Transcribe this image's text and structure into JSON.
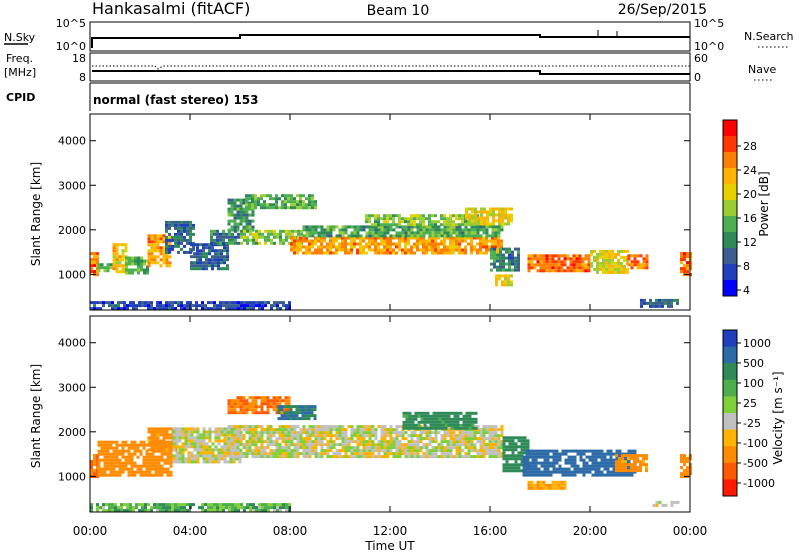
{
  "header": {
    "station": "Hankasalmi (fitACF)",
    "beam": "Beam 10",
    "date": "26/Sep/2015"
  },
  "panels": {
    "noise": {
      "left_label": "N.Sky",
      "left_ticks": [
        "10^5",
        "10^0"
      ],
      "right_ticks": [
        "10^5",
        "10^0"
      ],
      "right_label": "N.Search"
    },
    "freq": {
      "left_label_1": "Freq.",
      "left_label_2": "[MHz]",
      "left_ticks": [
        "18",
        "8"
      ],
      "right_ticks": [
        "60",
        "0"
      ],
      "right_label": "Nave"
    },
    "cpid": {
      "label": "CPID",
      "value": "normal (fast stereo) 153"
    }
  },
  "axes": {
    "x_label": "Time UT",
    "x_ticks": [
      "00:00",
      "04:00",
      "08:00",
      "12:00",
      "16:00",
      "20:00",
      "00:00"
    ],
    "y_label": "Slant Range [km]",
    "y_ticks": [
      "4000",
      "3000",
      "2000",
      "1000"
    ]
  },
  "colorbars": {
    "power": {
      "label": "Power [dB]",
      "ticks": [
        "28",
        "24",
        "20",
        "16",
        "12",
        "8",
        "4"
      ],
      "colors": [
        "#ff0000",
        "#ff3a00",
        "#ff7f00",
        "#ffb300",
        "#e8d000",
        "#9acd32",
        "#4caf50",
        "#2e8b57",
        "#3a5f8f",
        "#1f3fbf",
        "#0000ff"
      ]
    },
    "velocity": {
      "label": "Velocity [m s⁻¹]",
      "ticks": [
        "1000",
        "500",
        "100",
        "25",
        "-25",
        "-100",
        "-500",
        "-1000"
      ],
      "colors": [
        "#1f3fbf",
        "#2c6aa8",
        "#2e8b57",
        "#4cae4c",
        "#7ecf3a",
        "#c0c0c0",
        "#ffb300",
        "#ff8c00",
        "#ff5a00",
        "#ff1a00"
      ]
    }
  },
  "chart_data": [
    {
      "type": "heatmap",
      "title": "Power",
      "xlabel": "Time UT",
      "ylabel": "Slant Range [km]",
      "xlim": [
        0,
        24
      ],
      "ylim": [
        200,
        4600
      ],
      "colorbar": "Power [dB]",
      "colorbar_range": [
        2,
        32
      ],
      "bands": [
        {
          "t0": 0.0,
          "t1": 0.3,
          "r0": 1000,
          "r1": 1500,
          "db": 27
        },
        {
          "t0": 0.3,
          "t1": 0.9,
          "r0": 1050,
          "r1": 1250,
          "db": 14
        },
        {
          "t0": 0.9,
          "t1": 1.4,
          "r0": 1050,
          "r1": 1700,
          "db": 22
        },
        {
          "t0": 1.4,
          "t1": 2.3,
          "r0": 1050,
          "r1": 1400,
          "db": 14
        },
        {
          "t0": 2.3,
          "t1": 3.2,
          "r0": 1200,
          "r1": 1900,
          "db": 24
        },
        {
          "t0": 3.0,
          "t1": 4.2,
          "r0": 1500,
          "r1": 2200,
          "db": 8
        },
        {
          "t0": 4.0,
          "t1": 5.5,
          "r0": 1100,
          "r1": 1700,
          "db": 8
        },
        {
          "t0": 4.8,
          "t1": 6.0,
          "r0": 1700,
          "r1": 2000,
          "db": 10
        },
        {
          "t0": 5.5,
          "t1": 6.5,
          "r0": 2000,
          "r1": 2700,
          "db": 12
        },
        {
          "t0": 6.0,
          "t1": 8.5,
          "r0": 1700,
          "r1": 2000,
          "db": 16
        },
        {
          "t0": 6.2,
          "t1": 9.0,
          "r0": 2500,
          "r1": 2800,
          "db": 14
        },
        {
          "t0": 8.0,
          "t1": 16.5,
          "r0": 1450,
          "r1": 1850,
          "db": 24
        },
        {
          "t0": 8.5,
          "t1": 16.5,
          "r0": 1850,
          "r1": 2100,
          "db": 13
        },
        {
          "t0": 11.0,
          "t1": 15.5,
          "r0": 2100,
          "r1": 2350,
          "db": 16
        },
        {
          "t0": 15.0,
          "t1": 16.8,
          "r0": 2100,
          "r1": 2500,
          "db": 20
        },
        {
          "t0": 16.0,
          "t1": 17.2,
          "r0": 1100,
          "r1": 1600,
          "db": 10
        },
        {
          "t0": 16.2,
          "t1": 16.8,
          "r0": 750,
          "r1": 1000,
          "db": 20
        },
        {
          "t0": 17.5,
          "t1": 20.0,
          "r0": 1050,
          "r1": 1450,
          "db": 27
        },
        {
          "t0": 20.0,
          "t1": 21.5,
          "r0": 1050,
          "r1": 1550,
          "db": 20
        },
        {
          "t0": 21.5,
          "t1": 22.3,
          "r0": 1150,
          "r1": 1450,
          "db": 26
        },
        {
          "t0": 22.0,
          "t1": 23.5,
          "r0": 250,
          "r1": 450,
          "db": 8
        },
        {
          "t0": 23.6,
          "t1": 24.0,
          "r0": 1000,
          "r1": 1500,
          "db": 27
        },
        {
          "t0": 0.0,
          "t1": 8.0,
          "r0": 250,
          "r1": 400,
          "db": 6
        }
      ]
    },
    {
      "type": "heatmap",
      "title": "Velocity",
      "xlabel": "Time UT",
      "ylabel": "Slant Range [km]",
      "xlim": [
        0,
        24
      ],
      "ylim": [
        200,
        4600
      ],
      "colorbar": "Velocity [m s⁻¹]",
      "bands": [
        {
          "t0": 0.0,
          "t1": 0.3,
          "r0": 1000,
          "r1": 1500,
          "v": -300
        },
        {
          "t0": 0.3,
          "t1": 3.2,
          "r0": 1050,
          "r1": 1800,
          "v": -200
        },
        {
          "t0": 2.3,
          "t1": 3.5,
          "r0": 1600,
          "r1": 2100,
          "v": -150
        },
        {
          "t0": 3.3,
          "t1": 6.0,
          "r0": 1300,
          "r1": 2100,
          "v": 0
        },
        {
          "t0": 5.5,
          "t1": 8.0,
          "r0": 2400,
          "r1": 2800,
          "v": -300
        },
        {
          "t0": 7.5,
          "t1": 9.0,
          "r0": 2300,
          "r1": 2600,
          "v": 300
        },
        {
          "t0": 5.5,
          "t1": 16.5,
          "r0": 1450,
          "r1": 2150,
          "v": 0
        },
        {
          "t0": 12.5,
          "t1": 15.5,
          "r0": 2100,
          "r1": 2450,
          "v": 150
        },
        {
          "t0": 16.5,
          "t1": 17.5,
          "r0": 1100,
          "r1": 1900,
          "v": 200
        },
        {
          "t0": 17.3,
          "t1": 21.8,
          "r0": 1000,
          "r1": 1600,
          "v": 600
        },
        {
          "t0": 17.5,
          "t1": 19.0,
          "r0": 700,
          "r1": 900,
          "v": -100
        },
        {
          "t0": 21.0,
          "t1": 22.3,
          "r0": 1100,
          "r1": 1500,
          "v": -150
        },
        {
          "t0": 22.5,
          "t1": 23.5,
          "r0": 350,
          "r1": 450,
          "v": 0
        },
        {
          "t0": 23.6,
          "t1": 24.0,
          "r0": 1000,
          "r1": 1500,
          "v": -200
        },
        {
          "t0": 0.0,
          "t1": 8.0,
          "r0": 250,
          "r1": 400,
          "v": 80
        }
      ]
    }
  ]
}
